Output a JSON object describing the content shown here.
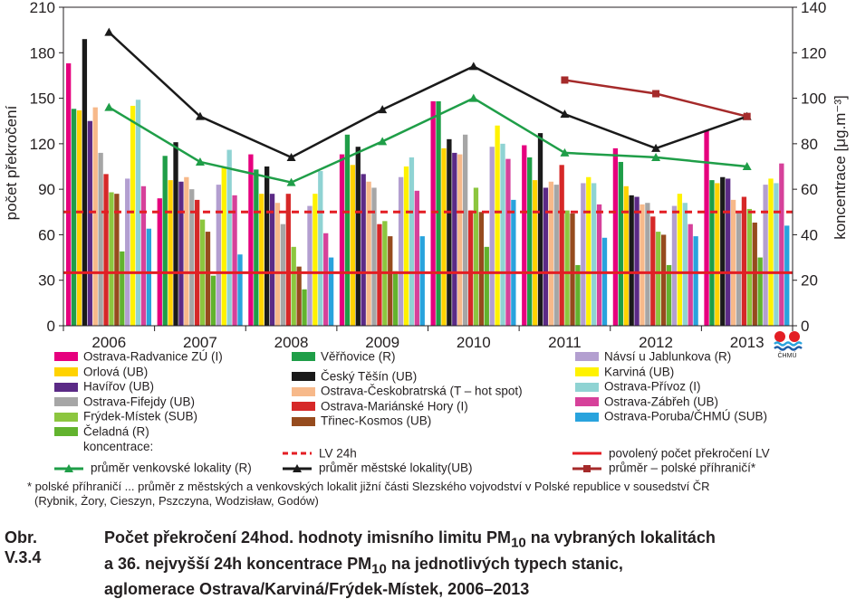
{
  "chart_data": {
    "type": "bar",
    "categories": [
      "2006",
      "2007",
      "2008",
      "2009",
      "2010",
      "2011",
      "2012",
      "2013"
    ],
    "ylabel": "počet překročení",
    "y2label": "koncentrace [μg.m⁻³]",
    "ylim": [
      0,
      210
    ],
    "y2lim": [
      0,
      140
    ],
    "yticks": [
      "0",
      "30",
      "60",
      "90",
      "120",
      "150",
      "180",
      "210"
    ],
    "y2ticks": [
      "0",
      "20",
      "40",
      "60",
      "80",
      "100",
      "120",
      "140"
    ],
    "series": [
      {
        "name": "Ostrava-Radvanice ZÚ (I)",
        "color": "#e6007e",
        "values": [
          173,
          84,
          113,
          113,
          148,
          119,
          117,
          129
        ]
      },
      {
        "name": "Věřňovice (R)",
        "color": "#1f9e48",
        "values": [
          143,
          112,
          103,
          126,
          148,
          111,
          108,
          96
        ]
      },
      {
        "name": "Orlová (UB)",
        "color": "#ffd200",
        "values": [
          142,
          96,
          87,
          106,
          117,
          96,
          92,
          94
        ]
      },
      {
        "name": "Český Těšín (UB)",
        "color": "#1a1a1a",
        "values": [
          189,
          121,
          105,
          118,
          123,
          127,
          86,
          98
        ]
      },
      {
        "name": "Havířov (UB)",
        "color": "#5b2a86",
        "values": [
          135,
          95,
          87,
          100,
          114,
          91,
          85,
          97
        ]
      },
      {
        "name": "Ostrava-Českobratrská (T – hot spot)",
        "color": "#f7b98a",
        "values": [
          144,
          98,
          81,
          95,
          113,
          95,
          80,
          83
        ]
      },
      {
        "name": "Ostrava-Fifejdy (UB)",
        "color": "#a6a6a6",
        "values": [
          114,
          90,
          67,
          91,
          126,
          93,
          81,
          75
        ]
      },
      {
        "name": "Ostrava-Mariánské Hory (I)",
        "color": "#d62828",
        "values": [
          100,
          83,
          87,
          67,
          76,
          106,
          72,
          85
        ]
      },
      {
        "name": "Frýdek-Místek (SUB)",
        "color": "#8cc63f",
        "values": [
          88,
          70,
          52,
          69,
          91,
          76,
          62,
          77
        ]
      },
      {
        "name": "Třinec-Kosmos (UB)",
        "color": "#964b1e",
        "values": [
          87,
          62,
          39,
          59,
          75,
          74,
          60,
          68
        ]
      },
      {
        "name": "Čeladná (R)",
        "color": "#62b32e",
        "values": [
          49,
          33,
          24,
          36,
          52,
          40,
          40,
          45
        ]
      },
      {
        "name": "Návsí u Jablunkova (R)",
        "color": "#b39fd0",
        "values": [
          97,
          93,
          79,
          98,
          118,
          94,
          79,
          93
        ]
      },
      {
        "name": "Karviná (UB)",
        "color": "#fff200",
        "values": [
          145,
          104,
          87,
          105,
          132,
          98,
          87,
          97
        ]
      },
      {
        "name": "Ostrava-Přívoz (I)",
        "color": "#8fd3d3",
        "values": [
          149,
          116,
          102,
          111,
          120,
          94,
          81,
          94
        ]
      },
      {
        "name": "Ostrava-Zábřeh (UB)",
        "color": "#d6419a",
        "values": [
          92,
          86,
          61,
          89,
          110,
          80,
          67,
          107
        ]
      },
      {
        "name": "Ostrava-Poruba/ČHMÚ (SUB)",
        "color": "#29a3dd",
        "values": [
          64,
          47,
          45,
          59,
          83,
          58,
          59,
          66
        ]
      }
    ],
    "lines": [
      {
        "name": "průměr venkovské lokality (R)",
        "color": "#1f9e48",
        "axis": "right",
        "marker": "triangle",
        "values": [
          96,
          72,
          63,
          81,
          100,
          76,
          74,
          70
        ]
      },
      {
        "name": "průměr městské lokality(UB)",
        "color": "#1a1a1a",
        "axis": "right",
        "marker": "triangle",
        "values": [
          129,
          92,
          74,
          95,
          114,
          93,
          78,
          92
        ]
      },
      {
        "name": "průměr – polské příhraničí*",
        "color": "#a52a2a",
        "axis": "right",
        "marker": "square",
        "values": [
          null,
          null,
          null,
          null,
          null,
          108,
          102,
          92
        ]
      }
    ],
    "reference_lines": [
      {
        "name": "LV 24h",
        "color": "#e31e24",
        "style": "dashed",
        "axis": "right",
        "value": 50
      },
      {
        "name": "povolený počet překročení LV",
        "color": "#e31e24",
        "style": "solid",
        "axis": "left",
        "value": 35
      }
    ]
  },
  "legend": {
    "concentration_header": "koncentrace:"
  },
  "note": {
    "line1": "* polské příhraničí ... průměr z městských a venkovských lokalit jižní části Slezského vojvodství v Polské republice v sousedství ČR",
    "line2": "(Rybnik, Żory, Cieszyn, Pszczyna, Wodzisław, Godów)"
  },
  "caption": {
    "number": "Obr. V.3.4",
    "line1_pre": "Počet překročení 24hod. hodnoty imisního limitu PM",
    "line1_sub": "10",
    "line1_post": " na vybraných lokalitách",
    "line2_pre": "a 36. nejvyšší 24h koncentrace PM",
    "line2_sub": "10",
    "line2_post": " na jednotlivých typech stanic,",
    "line3": "aglomerace Ostrava/Karviná/Frýdek-Místek, 2006–2013"
  },
  "logo": {
    "text": "ČHMÚ",
    "icon": "chmu-logo-icon"
  }
}
